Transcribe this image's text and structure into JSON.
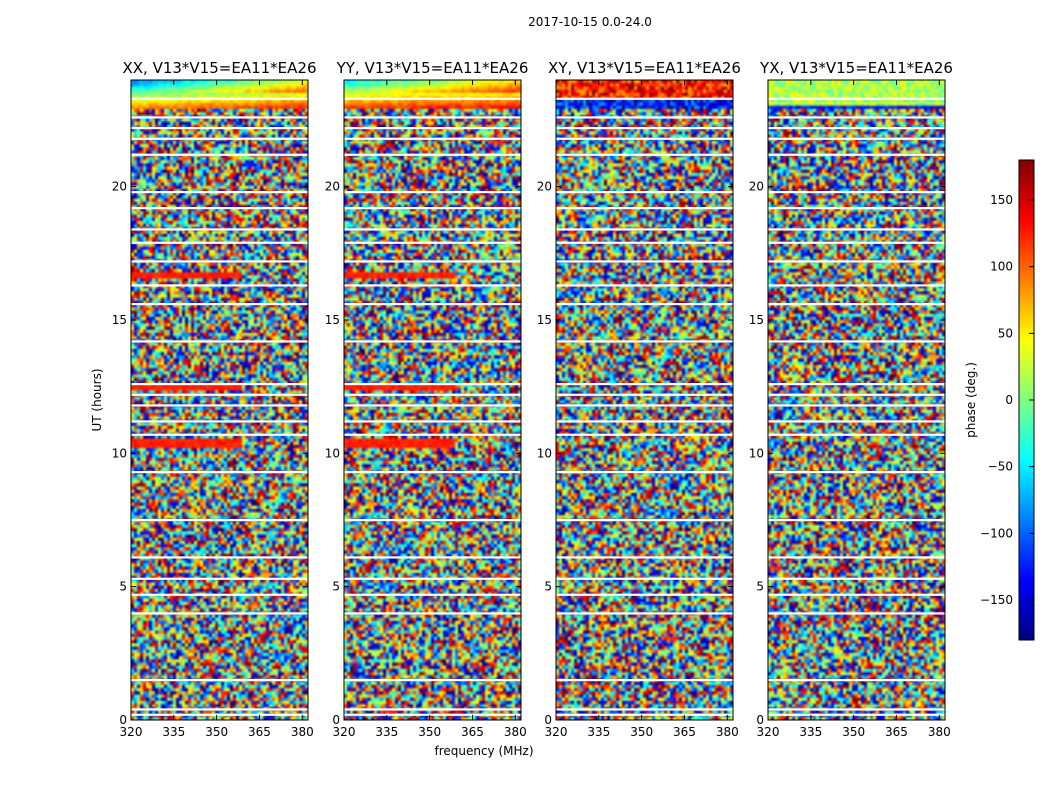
{
  "figure": {
    "suptitle": "2017-10-15 0.0-24.0"
  },
  "chart_data": {
    "type": "heatmap",
    "title": "2017-10-15 0.0-24.0",
    "xlabel": "frequency (MHz)",
    "ylabel": "UT (hours)",
    "xlim": [
      320,
      382
    ],
    "ylim": [
      0,
      24
    ],
    "x_ticks": [
      320,
      335,
      350,
      365,
      380
    ],
    "y_ticks": [
      0,
      5,
      10,
      15,
      20
    ],
    "colormap": "jet",
    "colorbar": {
      "label": "phase (deg.)",
      "range": [
        -180,
        180
      ],
      "ticks": [
        -150,
        -100,
        -50,
        0,
        50,
        100,
        150
      ],
      "tick_labels": [
        "−150",
        "−100",
        "−50",
        "0",
        "50",
        "100",
        "150"
      ]
    },
    "panels": [
      {
        "title": "XX, V13*V15=EA11*EA26",
        "product": "XX"
      },
      {
        "title": "YY, V13*V15=EA11*EA26",
        "product": "YY"
      },
      {
        "title": "XY, V13*V15=EA11*EA26",
        "product": "XY"
      },
      {
        "title": "YX, V13*V15=EA11*EA26",
        "product": "YX"
      }
    ],
    "flagged_ut_hours": [
      0.2,
      0.4,
      1.5,
      4.0,
      4.7,
      5.3,
      6.1,
      7.5,
      9.3,
      10.7,
      11.2,
      11.8,
      12.2,
      12.6,
      14.2,
      15.6,
      16.3,
      17.2,
      17.9,
      18.4,
      19.2,
      19.8,
      21.2,
      21.8,
      22.2,
      22.6,
      23.3
    ],
    "colors": {
      "jet_dark_blue": "#00007f",
      "jet_blue": "#0000ff",
      "jet_cyan": "#00ffff",
      "jet_yellow": "#ffff00",
      "jet_red": "#ff0000",
      "jet_dark_red": "#7f0000"
    }
  }
}
